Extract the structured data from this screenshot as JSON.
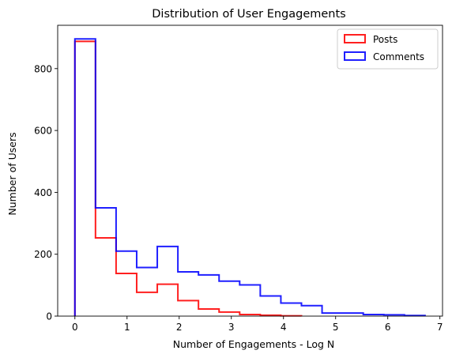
{
  "chart_data": {
    "type": "step-histogram",
    "title": "Distribution of User Engagements",
    "xlabel": "Number of Engagements - Log N",
    "ylabel": "Number of Users",
    "xlim": [
      -0.33,
      7.05
    ],
    "ylim": [
      0,
      940
    ],
    "xticks": [
      0,
      1,
      2,
      3,
      4,
      5,
      6,
      7
    ],
    "yticks": [
      0,
      200,
      400,
      600,
      800
    ],
    "legend_position": "top-right",
    "grid": false,
    "series": [
      {
        "name": "Posts",
        "color": "#ff0000",
        "bin_edges": [
          0,
          0.395,
          0.79,
          1.185,
          1.58,
          1.975,
          2.37,
          2.765,
          3.16,
          3.555,
          3.95,
          4.345
        ],
        "counts": [
          888,
          253,
          138,
          77,
          103,
          50,
          23,
          13,
          5,
          3,
          1
        ]
      },
      {
        "name": "Comments",
        "color": "#0000ff",
        "bin_edges": [
          0,
          0.395,
          0.79,
          1.185,
          1.58,
          1.975,
          2.37,
          2.765,
          3.16,
          3.555,
          3.95,
          4.345,
          4.74,
          5.135,
          5.53,
          5.925,
          6.32,
          6.715
        ],
        "counts": [
          896,
          350,
          210,
          157,
          225,
          143,
          133,
          113,
          101,
          65,
          42,
          34,
          10,
          10,
          5,
          4,
          2
        ]
      }
    ]
  }
}
